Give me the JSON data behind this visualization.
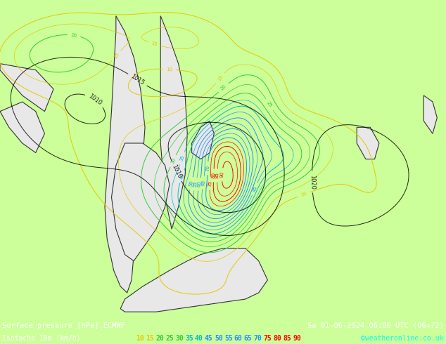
{
  "title_left": "Surface pressure [hPa] ECMWF",
  "title_right": "Sa 01-06-2024 06:00 UTC (06+72)",
  "legend_label": "Isotachs 10m (km/h)",
  "copyright": "©weatheronline.co.uk",
  "sea_color": "#ccff99",
  "land_color": "#e8e8e8",
  "figsize": [
    6.34,
    4.9
  ],
  "dpi": 100,
  "title_fontsize": 7.5,
  "legend_fontsize": 7.0,
  "copyright_fontsize": 7.0,
  "isotach_values": [
    10,
    15,
    20,
    25,
    30,
    35,
    40,
    45,
    50,
    55,
    60,
    65,
    70,
    75,
    80,
    85,
    90
  ],
  "isotach_line_colors": {
    "10": "#e6c800",
    "15": "#e6c800",
    "20": "#32cd32",
    "25": "#32cd32",
    "30": "#32cd32",
    "35": "#00bfbf",
    "40": "#00bfbf",
    "45": "#1e90ff",
    "50": "#1e90ff",
    "55": "#1e90ff",
    "60": "#1e90ff",
    "65": "#1e90ff",
    "70": "#1e90ff",
    "75": "#ff0000",
    "80": "#ff0000",
    "85": "#ff0000",
    "90": "#ff0000"
  },
  "legend_colors": [
    "#e6c800",
    "#e6c800",
    "#32cd32",
    "#32cd32",
    "#32cd32",
    "#00bfbf",
    "#00bfbf",
    "#1e90ff",
    "#1e90ff",
    "#1e90ff",
    "#1e90ff",
    "#1e90ff",
    "#1e90ff",
    "#ff0000",
    "#ff0000",
    "#ff0000",
    "#ff0000"
  ]
}
